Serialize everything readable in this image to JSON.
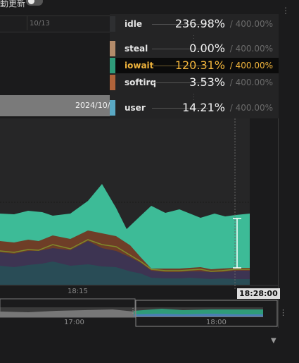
{
  "toolbar": {
    "auto_refresh_label": "動更新"
  },
  "ruler": {
    "tick_label": "10/13"
  },
  "range_bar": {
    "label": "2024/10/"
  },
  "tooltip": {
    "rows": [
      {
        "name": "idle",
        "value": "236.98%",
        "max": "/ 400.00%",
        "color": "#2e2f31",
        "active": false
      },
      {
        "name": "steal",
        "value": "0.00%",
        "max": "/ 400.00%",
        "color": "#b38b6a",
        "active": false
      },
      {
        "name": "iowait",
        "value": "120.31%",
        "max": "/ 400.00%",
        "color": "#2f9b79",
        "active": true
      },
      {
        "name": "softirq",
        "value": "3.53%",
        "max": "/ 400.00%",
        "color": "#b0633a",
        "active": false
      },
      {
        "name": "user",
        "value": "14.21%",
        "max": "/ 400.00%",
        "color": "#5aa9c4",
        "active": false
      }
    ]
  },
  "chart": {
    "x_label": "18:15",
    "cursor_time": "18:28:00",
    "colors": {
      "iowait": "#3dbb97",
      "softirq": "#6e3e27",
      "olive_line": "#7f8a2a",
      "system": "#3d3452",
      "user": "#294c56",
      "cursor": "#ffffff"
    }
  },
  "overview": {
    "labels": [
      "17:00",
      "18:00"
    ]
  }
}
